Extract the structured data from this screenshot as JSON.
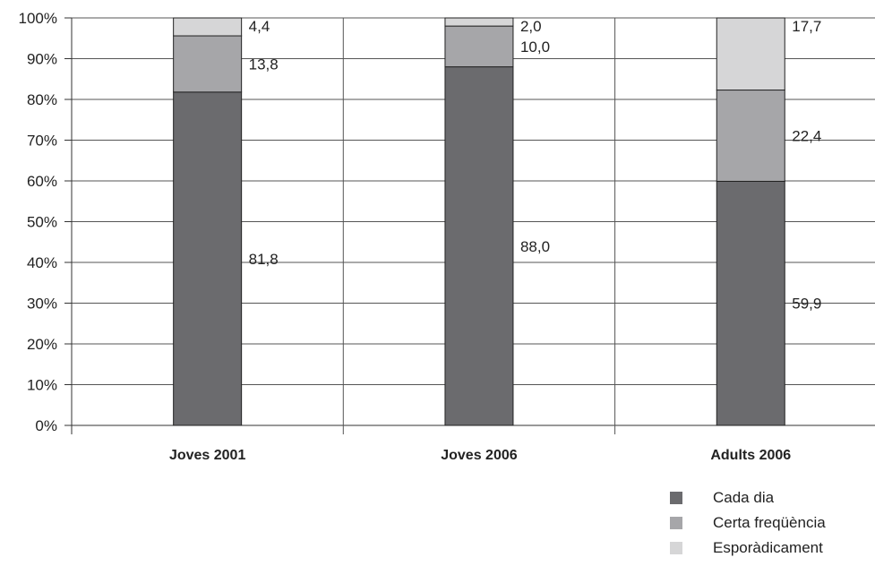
{
  "chart_data": {
    "type": "bar",
    "stacked": true,
    "categories": [
      "Joves 2001",
      "Joves 2006",
      "Adults 2006"
    ],
    "series": [
      {
        "name": "Cada dia",
        "values": [
          81.8,
          88.0,
          59.9
        ],
        "labels": [
          "81,8",
          "88,0",
          "59,9"
        ],
        "color": "#6b6b6e"
      },
      {
        "name": "Certa freqüència",
        "values": [
          13.8,
          10.0,
          22.4
        ],
        "labels": [
          "13,8",
          "10,0",
          "22,4"
        ],
        "color": "#a6a6a9"
      },
      {
        "name": "Esporàdicament",
        "values": [
          4.4,
          2.0,
          17.7
        ],
        "labels": [
          "4,4",
          "2,0",
          "17,7"
        ],
        "color": "#d6d6d7"
      }
    ],
    "yticks": [
      "0%",
      "10%",
      "20%",
      "30%",
      "40%",
      "50%",
      "60%",
      "70%",
      "80%",
      "90%",
      "100%"
    ],
    "ylim": [
      0,
      100
    ],
    "grid": true,
    "legend": "bottom-right"
  }
}
